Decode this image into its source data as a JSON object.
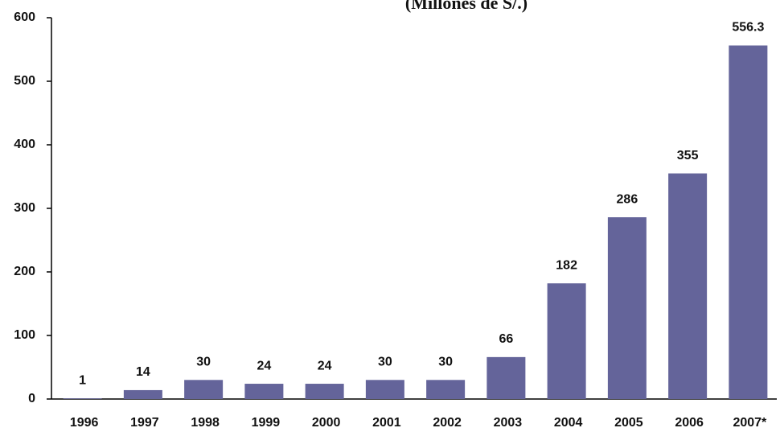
{
  "chart_data": {
    "type": "bar",
    "title": "(Millones de S/.)",
    "categories": [
      "1996",
      "1997",
      "1998",
      "1999",
      "2000",
      "2001",
      "2002",
      "2003",
      "2004",
      "2005",
      "2006",
      "2007*"
    ],
    "values": [
      1,
      14,
      30,
      24,
      24,
      30,
      30,
      66,
      182,
      286,
      355,
      556.3
    ],
    "color": "#64649a",
    "ylim": [
      0,
      600
    ],
    "yticks": [
      0,
      100,
      200,
      300,
      400,
      500,
      600
    ],
    "grid": false
  }
}
